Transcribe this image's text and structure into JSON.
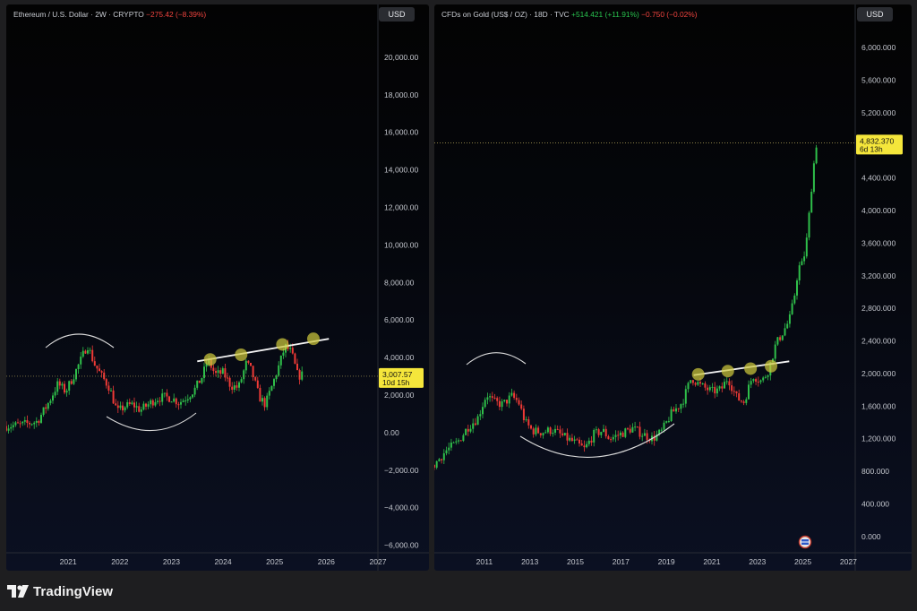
{
  "charts": [
    {
      "id": "eth",
      "header": {
        "symbol": "Ethereum / U.S. Dollar · 2W · CRYPTO",
        "change": "−275.42 (−8.39%)"
      },
      "currency_button": "USD",
      "price_label": {
        "price": "3,007.57",
        "countdown": "10d 15h"
      }
    },
    {
      "id": "gold",
      "header": {
        "symbol": "CFDs on Gold (US$ / OZ) · 18D · TVC",
        "change_up": "+514.421 (+11.91%)",
        "change_down": "−0.750 (−0.02%)"
      },
      "currency_button": "USD",
      "price_label": {
        "price": "4,832.370",
        "countdown": "6d 13h"
      }
    }
  ],
  "chart_data": [
    {
      "type": "candlestick",
      "title": "Ethereum / U.S. Dollar · 2W · CRYPTO",
      "ylim": [
        -6400,
        21000
      ],
      "y_ticks": [
        "20,000.00",
        "18,000.00",
        "16,000.00",
        "14,000.00",
        "12,000.00",
        "10,000.00",
        "8,000.00",
        "6,000.00",
        "4,000.00",
        "2,000.00",
        "0.00",
        "−2,000.00",
        "−4,000.00",
        "−6,000.00"
      ],
      "x_ticks": [
        "2021",
        "2022",
        "2023",
        "2024",
        "2025",
        "2026",
        "2027"
      ],
      "xlim": [
        2020.3,
        2027.5
      ],
      "last_price": 3007.57,
      "approx_closes": [
        [
          2020.3,
          350
        ],
        [
          2020.6,
          420
        ],
        [
          2020.9,
          600
        ],
        [
          2021.1,
          1500
        ],
        [
          2021.3,
          2600
        ],
        [
          2021.45,
          2200
        ],
        [
          2021.6,
          3000
        ],
        [
          2021.75,
          3900
        ],
        [
          2021.87,
          4700
        ],
        [
          2022.0,
          3700
        ],
        [
          2022.15,
          3000
        ],
        [
          2022.3,
          2400
        ],
        [
          2022.45,
          1100
        ],
        [
          2022.6,
          1400
        ],
        [
          2022.75,
          1500
        ],
        [
          2022.9,
          1200
        ],
        [
          2023.05,
          1500
        ],
        [
          2023.2,
          1800
        ],
        [
          2023.35,
          1900
        ],
        [
          2023.5,
          1850
        ],
        [
          2023.65,
          1600
        ],
        [
          2023.8,
          1900
        ],
        [
          2023.95,
          2300
        ],
        [
          2024.1,
          3000
        ],
        [
          2024.2,
          3900
        ],
        [
          2024.35,
          3100
        ],
        [
          2024.5,
          3200
        ],
        [
          2024.65,
          2500
        ],
        [
          2024.8,
          2400
        ],
        [
          2024.95,
          3700
        ],
        [
          2025.05,
          3300
        ],
        [
          2025.2,
          1900
        ],
        [
          2025.32,
          1500
        ],
        [
          2025.45,
          2500
        ],
        [
          2025.6,
          3700
        ],
        [
          2025.7,
          4600
        ],
        [
          2025.82,
          4300
        ],
        [
          2025.95,
          3000
        ],
        [
          2026.05,
          3100
        ]
      ],
      "resistance_line": {
        "from": [
          2024.0,
          3800
        ],
        "to": [
          2026.55,
          5000
        ]
      },
      "touch_points": [
        [
          2024.25,
          3900
        ],
        [
          2024.85,
          4150
        ],
        [
          2025.65,
          4700
        ],
        [
          2026.25,
          5000
        ]
      ],
      "annotations": [
        "rounded top arc around 2021-2022 peak",
        "rounded bottom arc 2022-2024"
      ]
    },
    {
      "type": "candlestick",
      "title": "CFDs on Gold (US$ / OZ) · 18D · TVC",
      "ylim": [
        -200,
        6200
      ],
      "y_ticks": [
        "6,000.000",
        "5,600.000",
        "5,200.000",
        "4,400.000",
        "4,000.000",
        "3,600.000",
        "3,200.000",
        "2,800.000",
        "2,400.000",
        "2,000.000",
        "1,600.000",
        "1,200.000",
        "800.000",
        "400.000",
        "0.000"
      ],
      "x_ticks": [
        "2011",
        "2013",
        "2015",
        "2017",
        "2019",
        "2021",
        "2023",
        "2025",
        "2027"
      ],
      "xlim": [
        2009.3,
        2027.8
      ],
      "last_price": 4832.37,
      "approx_closes": [
        [
          2009.3,
          880
        ],
        [
          2009.8,
          1050
        ],
        [
          2010.3,
          1150
        ],
        [
          2010.8,
          1350
        ],
        [
          2011.2,
          1450
        ],
        [
          2011.6,
          1750
        ],
        [
          2011.9,
          1650
        ],
        [
          2012.3,
          1620
        ],
        [
          2012.7,
          1720
        ],
        [
          2013.0,
          1650
        ],
        [
          2013.3,
          1400
        ],
        [
          2013.6,
          1300
        ],
        [
          2014.0,
          1280
        ],
        [
          2014.5,
          1310
        ],
        [
          2015.0,
          1220
        ],
        [
          2015.5,
          1150
        ],
        [
          2015.9,
          1070
        ],
        [
          2016.3,
          1250
        ],
        [
          2016.7,
          1300
        ],
        [
          2017.0,
          1200
        ],
        [
          2017.5,
          1260
        ],
        [
          2018.0,
          1330
        ],
        [
          2018.5,
          1250
        ],
        [
          2018.9,
          1200
        ],
        [
          2019.3,
          1290
        ],
        [
          2019.7,
          1500
        ],
        [
          2020.2,
          1650
        ],
        [
          2020.6,
          1950
        ],
        [
          2021.0,
          1850
        ],
        [
          2021.5,
          1780
        ],
        [
          2021.9,
          1800
        ],
        [
          2022.2,
          1950
        ],
        [
          2022.6,
          1700
        ],
        [
          2022.9,
          1650
        ],
        [
          2023.3,
          1980
        ],
        [
          2023.7,
          1900
        ],
        [
          2024.0,
          2050
        ],
        [
          2024.3,
          2350
        ],
        [
          2024.6,
          2500
        ],
        [
          2024.9,
          2650
        ],
        [
          2025.1,
          2900
        ],
        [
          2025.3,
          3300
        ],
        [
          2025.5,
          3350
        ],
        [
          2025.7,
          3700
        ],
        [
          2025.85,
          4200
        ],
        [
          2025.95,
          4500
        ],
        [
          2026.1,
          4832
        ]
      ],
      "resistance_line": {
        "from": [
          2020.7,
          1980
        ],
        "to": [
          2024.9,
          2150
        ]
      },
      "touch_points": [
        [
          2020.9,
          1990
        ],
        [
          2022.2,
          2030
        ],
        [
          2023.2,
          2060
        ],
        [
          2024.1,
          2090
        ]
      ],
      "annotations": [
        "rounded top arc around 2011-2012",
        "rounded bottom arc 2013-2020"
      ]
    }
  ],
  "footer": {
    "brand": "TradingView"
  }
}
